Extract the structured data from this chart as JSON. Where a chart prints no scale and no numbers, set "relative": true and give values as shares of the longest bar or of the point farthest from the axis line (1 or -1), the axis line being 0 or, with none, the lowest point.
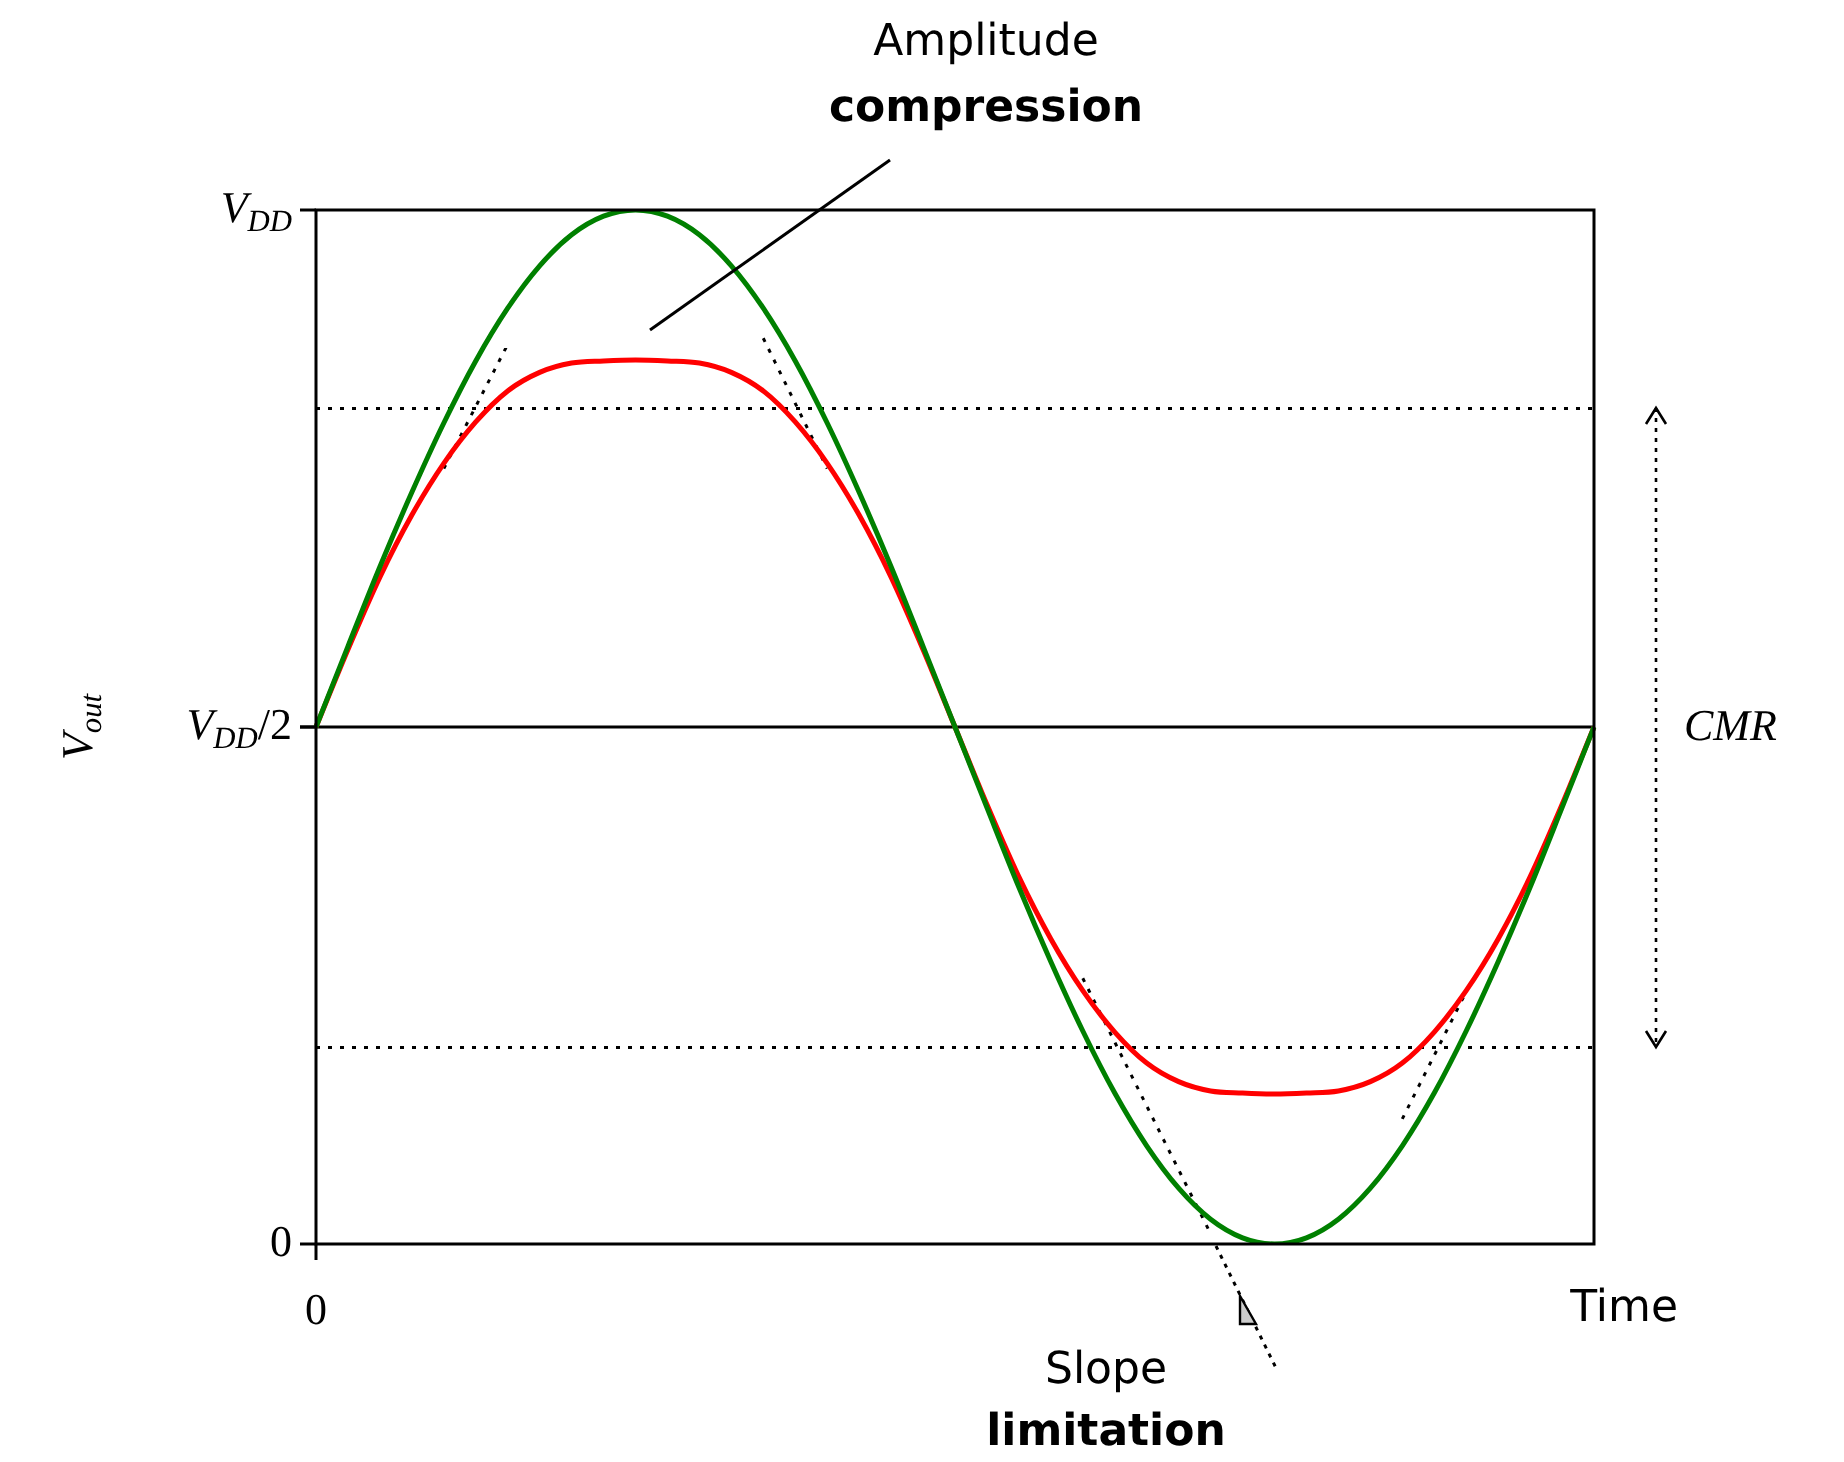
{
  "chart_data": {
    "type": "line",
    "relative": true,
    "xlabel": "Time",
    "ylabel": "V$_{out}$",
    "categories": [
      null,
      null,
      null,
      null,
      null,
      null,
      null,
      null,
      null,
      null,
      null,
      null,
      null,
      null,
      null,
      null,
      null,
      null,
      null,
      null,
      null,
      null,
      null,
      null,
      null,
      null,
      null,
      null,
      null,
      null,
      null,
      null,
      null,
      null,
      null,
      null,
      null,
      null,
      null,
      null,
      null
    ],
    "series": [
      {
        "color": "#008000",
        "values": [
          0.5,
          0.578,
          0.655,
          0.727,
          0.794,
          0.854,
          0.905,
          0.946,
          0.976,
          0.994,
          1,
          0.994,
          0.976,
          0.946,
          0.905,
          0.854,
          0.794,
          0.727,
          0.655,
          0.578,
          0.5,
          0.422,
          0.345,
          0.273,
          0.206,
          0.146,
          0.095,
          0.054,
          0.024,
          0.006,
          0,
          0.006,
          0.024,
          0.054,
          0.095,
          0.146,
          0.206,
          0.273,
          0.345,
          0.422,
          0.5
        ]
      },
      {
        "color": "#ff0000",
        "values": [
          0.5,
          0.575,
          0.645,
          0.705,
          0.755,
          0.795,
          0.825,
          0.843,
          0.852,
          0.854,
          0.855,
          0.854,
          0.852,
          0.843,
          0.825,
          0.795,
          0.755,
          0.705,
          0.645,
          0.575,
          0.5,
          0.425,
          0.355,
          0.295,
          0.245,
          0.205,
          0.175,
          0.157,
          0.148,
          0.146,
          0.145,
          0.146,
          0.148,
          0.157,
          0.175,
          0.205,
          0.245,
          0.295,
          0.355,
          0.425,
          0.5
        ]
      },
      {
        "color": "#000000",
        "line_style": "dotted",
        "values": [
          null,
          null,
          null,
          null,
          0.75,
          null,
          0.87,
          null,
          null,
          null,
          null,
          null,
          null,
          null,
          null,
          null,
          null,
          null,
          null,
          null,
          null,
          null,
          null,
          null,
          null,
          null,
          null,
          null,
          null,
          null,
          null,
          null,
          null,
          null,
          null,
          null,
          null,
          null,
          null,
          null,
          null
        ]
      },
      {
        "color": "#000000",
        "line_style": "dotted",
        "values": [
          null,
          null,
          null,
          null,
          null,
          null,
          null,
          null,
          null,
          null,
          null,
          null,
          null,
          null,
          0.876,
          null,
          0.75,
          null,
          null,
          null,
          null,
          null,
          null,
          null,
          null,
          null,
          null,
          null,
          null,
          null,
          null,
          null,
          null,
          null,
          null,
          null,
          null,
          null,
          null,
          null,
          null
        ]
      },
      {
        "color": "#000000",
        "line_style": "dotted",
        "values": [
          null,
          null,
          null,
          null,
          null,
          null,
          null,
          null,
          null,
          null,
          null,
          null,
          null,
          null,
          null,
          null,
          null,
          null,
          null,
          null,
          null,
          null,
          null,
          null,
          0.257,
          null,
          null,
          null,
          0.01,
          null,
          null,
          null,
          null,
          null,
          null,
          null,
          null,
          null,
          null,
          null,
          null
        ]
      },
      {
        "color": "#000000",
        "line_style": "dotted",
        "values": [
          null,
          null,
          null,
          null,
          null,
          null,
          null,
          null,
          null,
          null,
          null,
          null,
          null,
          null,
          null,
          null,
          null,
          null,
          null,
          null,
          null,
          null,
          null,
          null,
          null,
          null,
          null,
          null,
          null,
          null,
          null,
          null,
          null,
          null,
          0.121,
          null,
          0.244,
          null,
          null,
          null,
          null
        ]
      }
    ],
    "ref_lines": [
      {
        "axis": "y",
        "value": 0.5,
        "color": "#000000",
        "line_style": "solid"
      },
      {
        "axis": "y",
        "value": 0.808,
        "color": "#000000",
        "line_style": "dotted"
      },
      {
        "axis": "y",
        "value": 0.19,
        "color": "#000000",
        "line_style": "dotted"
      }
    ],
    "annotations": [
      "Amplitude compression",
      "Slope limitation",
      "0",
      "V$_{DD}$",
      "V$_{DD}$/2",
      "0",
      "CMR"
    ],
    "marker": "none",
    "line_style": "solid",
    "legend": false,
    "grid": false
  }
}
